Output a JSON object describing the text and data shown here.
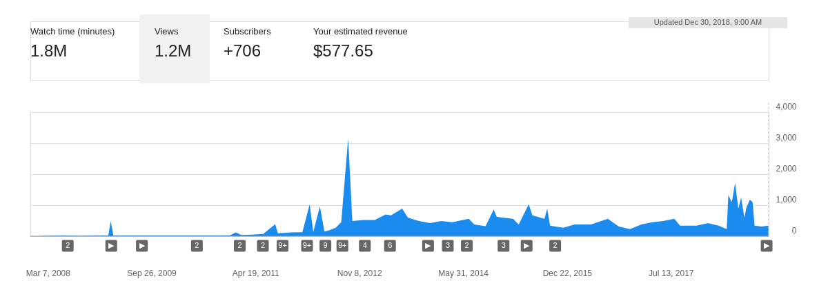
{
  "chart_data": {
    "type": "area",
    "x": [
      "2008-02-05",
      "2008-03-01",
      "2008-06-01",
      "2008-09-01",
      "2008-12-01",
      "2009-02-01",
      "2009-02-15",
      "2009-03-01",
      "2009-06-01",
      "2009-09-01",
      "2009-12-01",
      "2010-03-01",
      "2010-06-01",
      "2010-09-01",
      "2010-12-01",
      "2011-01-01",
      "2011-02-01",
      "2011-04-01",
      "2011-06-01",
      "2011-08-05",
      "2011-08-20",
      "2011-09-01",
      "2011-11-01",
      "2012-01-01",
      "2012-02-10",
      "2012-03-01",
      "2012-04-06",
      "2012-05-01",
      "2012-06-01",
      "2012-07-01",
      "2012-08-01",
      "2012-09-08",
      "2012-10-01",
      "2012-12-01",
      "2013-02-01",
      "2013-04-01",
      "2013-05-01",
      "2013-07-01",
      "2013-08-01",
      "2013-10-01",
      "2013-12-01",
      "2014-02-01",
      "2014-04-01",
      "2014-07-01",
      "2014-08-01",
      "2014-10-01",
      "2014-11-15",
      "2014-12-01",
      "2015-01-01",
      "2015-03-01",
      "2015-04-01",
      "2015-05-26",
      "2015-06-15",
      "2015-08-20",
      "2015-09-04",
      "2015-09-20",
      "2015-12-01",
      "2016-02-01",
      "2016-05-01",
      "2016-08-01",
      "2016-10-01",
      "2016-12-01",
      "2017-02-01",
      "2017-04-01",
      "2017-06-01",
      "2017-08-01",
      "2017-09-01",
      "2017-12-01",
      "2018-02-01",
      "2018-04-01",
      "2018-05-15",
      "2018-05-24",
      "2018-06-12",
      "2018-06-30",
      "2018-07-18",
      "2018-08-02",
      "2018-08-20",
      "2018-08-31",
      "2018-09-19",
      "2018-10-04",
      "2018-10-15",
      "2018-11-21",
      "2018-12-30"
    ],
    "series": [
      {
        "color": "#1a8cf0",
        "values": [
          10,
          10,
          20,
          10,
          20,
          20,
          490,
          20,
          20,
          20,
          20,
          20,
          20,
          20,
          30,
          120,
          40,
          50,
          70,
          390,
          90,
          100,
          120,
          130,
          1030,
          140,
          960,
          150,
          200,
          270,
          450,
          3150,
          490,
          520,
          520,
          700,
          670,
          890,
          600,
          490,
          420,
          490,
          450,
          560,
          380,
          320,
          860,
          630,
          600,
          560,
          380,
          1030,
          670,
          560,
          890,
          340,
          270,
          380,
          380,
          560,
          310,
          230,
          380,
          450,
          490,
          560,
          340,
          340,
          420,
          340,
          230,
          1320,
          1100,
          1720,
          890,
          1250,
          600,
          920,
          1180,
          1100,
          340,
          310,
          340
        ]
      }
    ],
    "xlim": [
      "2007-12-02",
      "2018-12-31"
    ],
    "xticks": [
      {
        "value": "2008-03-07",
        "label": "Mar 7, 2008"
      },
      {
        "value": "2009-09-26",
        "label": "Sep 26, 2009"
      },
      {
        "value": "2011-04-19",
        "label": "Apr 19, 2011"
      },
      {
        "value": "2012-11-08",
        "label": "Nov 8, 2012"
      },
      {
        "value": "2014-05-31",
        "label": "May 31, 2014"
      },
      {
        "value": "2015-12-22",
        "label": "Dec 22, 2015"
      },
      {
        "value": "2017-07-13",
        "label": "Jul 13, 2017"
      }
    ],
    "ylim": [
      0,
      4000
    ],
    "yticks": [
      0,
      {
        "value": 1000,
        "label": "1,000"
      },
      {
        "value": 2000,
        "label": "2,000"
      },
      {
        "value": 3000,
        "label": "3,000"
      },
      {
        "value": 4000,
        "label": "4,000"
      }
    ],
    "grid": "y",
    "ref_lines": [
      {
        "axis": "x",
        "value": "2018-12-30",
        "color": "#cccccc",
        "line_style": "dashed"
      }
    ],
    "annotations": [
      "Watch time (minutes)",
      "1.8M",
      "Views",
      "1.2M",
      "Subscribers",
      "+706",
      "Your estimated revenue",
      "$577.65",
      "Updated Dec 30, 2018, 9:00 AM",
      "2",
      "▶",
      "▶",
      "2",
      "2",
      "2",
      "9+",
      "9+",
      "9",
      "9+",
      "4",
      "6",
      "▶",
      "3",
      "2",
      "3",
      "▶",
      "2",
      "▶"
    ]
  }
}
